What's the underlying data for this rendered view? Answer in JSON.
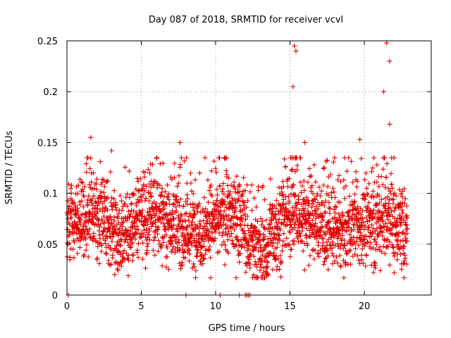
{
  "chart_data": {
    "type": "scatter",
    "title": "Day 087 of 2018, SRMTID for receiver vcvl",
    "xlabel": "GPS time / hours",
    "ylabel": "SRMTID / TECUs",
    "xlim": [
      0,
      24.5
    ],
    "ylim": [
      0,
      0.25
    ],
    "x_ticks": [
      0,
      5,
      10,
      15,
      20
    ],
    "x_tick_labels": [
      "0",
      "5",
      "10",
      "15",
      "20"
    ],
    "y_ticks": [
      0,
      0.05,
      0.1,
      0.15,
      0.2,
      0.25
    ],
    "y_tick_labels": [
      "0",
      "0.05",
      "0.1",
      "0.15",
      "0.2",
      "0.25"
    ],
    "grid": true,
    "marker": "+",
    "color": "#e00000",
    "series": [
      {
        "name": "SRMTID",
        "x_range": [
          0,
          22.9
        ],
        "dense_cloud_note": "approx. 2500 points, values mostly between 0.02 and 0.12",
        "peaks": [
          {
            "x": 1.6,
            "y": 0.155
          },
          {
            "x": 3.0,
            "y": 0.142
          },
          {
            "x": 7.6,
            "y": 0.15
          },
          {
            "x": 15.3,
            "y": 0.245
          },
          {
            "x": 15.4,
            "y": 0.24
          },
          {
            "x": 15.2,
            "y": 0.205
          },
          {
            "x": 16.0,
            "y": 0.15
          },
          {
            "x": 21.5,
            "y": 0.248
          },
          {
            "x": 21.7,
            "y": 0.23
          },
          {
            "x": 21.3,
            "y": 0.2
          },
          {
            "x": 21.7,
            "y": 0.168
          },
          {
            "x": 19.7,
            "y": 0.153
          }
        ],
        "zero_values_x": [
          0.1,
          8.0,
          10.3,
          11.6,
          12.0,
          12.1,
          12.2,
          12.3
        ]
      }
    ]
  }
}
